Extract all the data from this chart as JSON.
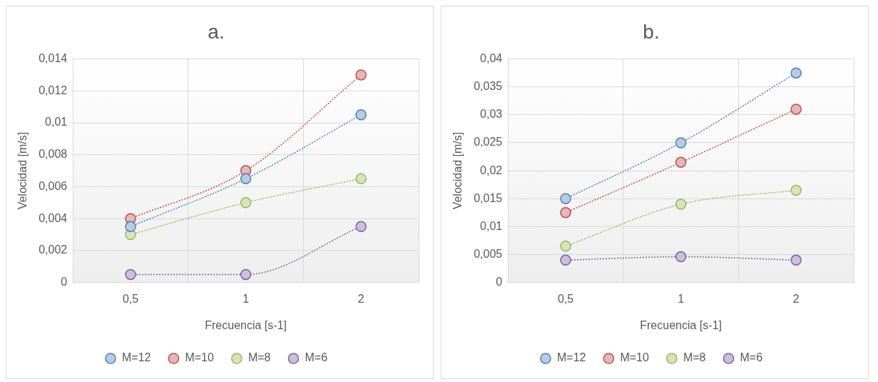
{
  "chart_data": [
    {
      "type": "line",
      "title": "a.",
      "xlabel": "Frecuencia [s-1]",
      "ylabel": "Velocidad [m/s]",
      "categories": [
        "0,5",
        "1",
        "2"
      ],
      "ylim": [
        0,
        0.014
      ],
      "yticks": [
        0,
        {
          "value": 0.002,
          "label": "0,002"
        },
        {
          "value": 0.004,
          "label": "0,004"
        },
        {
          "value": 0.006,
          "label": "0,006"
        },
        {
          "value": 0.008,
          "label": "0,008"
        },
        {
          "value": 0.01,
          "label": "0,01"
        },
        {
          "value": 0.012,
          "label": "0,012"
        },
        {
          "value": 0.014,
          "label": "0,014"
        }
      ],
      "grid": true,
      "legend": "bottom",
      "marker": "circle",
      "line_style": "dotted",
      "series": [
        {
          "name": "M=12",
          "color": "#4a7ebb",
          "values": [
            0.0035,
            0.0065,
            0.0105
          ]
        },
        {
          "name": "M=10",
          "color": "#be4b48",
          "values": [
            0.004,
            0.007,
            0.013
          ]
        },
        {
          "name": "M=8",
          "color": "#98b954",
          "values": [
            0.003,
            0.005,
            0.0065
          ]
        },
        {
          "name": "M=6",
          "color": "#7d60a0",
          "values": [
            0.0005,
            0.0005,
            0.0035
          ]
        }
      ]
    },
    {
      "type": "line",
      "title": "b.",
      "xlabel": "Frecuencia [s-1]",
      "ylabel": "Velocidad [m/s]",
      "categories": [
        "0,5",
        "1",
        "2"
      ],
      "ylim": [
        0,
        0.04
      ],
      "yticks": [
        0,
        {
          "value": 0.005,
          "label": "0,005"
        },
        {
          "value": 0.01,
          "label": "0,01"
        },
        {
          "value": 0.015,
          "label": "0,015"
        },
        {
          "value": 0.02,
          "label": "0,02"
        },
        {
          "value": 0.025,
          "label": "0,025"
        },
        {
          "value": 0.03,
          "label": "0,03"
        },
        {
          "value": 0.035,
          "label": "0,035"
        },
        {
          "value": 0.04,
          "label": "0,04"
        }
      ],
      "grid": true,
      "legend": "bottom",
      "marker": "circle",
      "line_style": "dotted",
      "series": [
        {
          "name": "M=12",
          "color": "#4a7ebb",
          "values": [
            0.015,
            0.025,
            0.0375
          ]
        },
        {
          "name": "M=10",
          "color": "#be4b48",
          "values": [
            0.0125,
            0.0215,
            0.031
          ]
        },
        {
          "name": "M=8",
          "color": "#98b954",
          "values": [
            0.0065,
            0.014,
            0.0165
          ]
        },
        {
          "name": "M=6",
          "color": "#7d60a0",
          "values": [
            0.004,
            0.0046,
            0.004
          ]
        }
      ]
    }
  ]
}
